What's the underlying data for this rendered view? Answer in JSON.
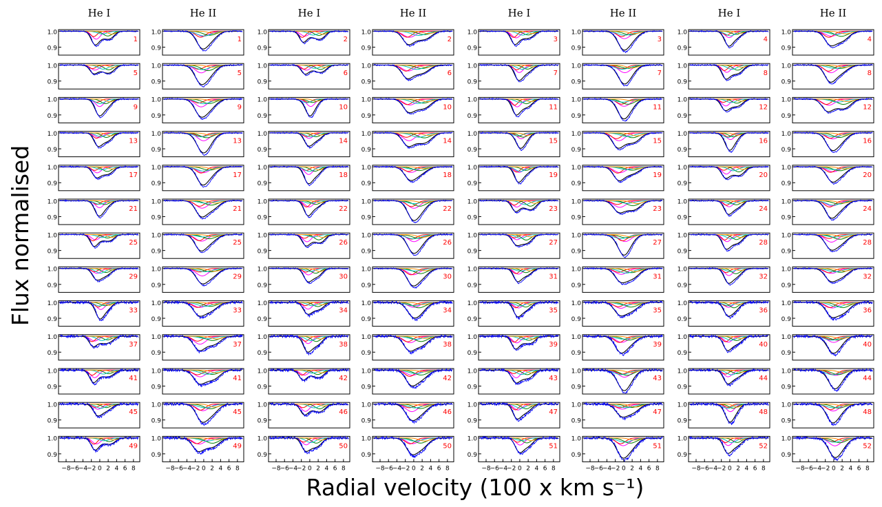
{
  "chart_data": {
    "type": "line",
    "xlabel": "Radial velocity (100 x km s⁻¹)",
    "ylabel": "Flux normalised",
    "column_titles": [
      "He I",
      "He II",
      "He I",
      "He II",
      "He I",
      "He II",
      "He I",
      "He II"
    ],
    "rows": 13,
    "pair_columns": 4,
    "panel_labels": [
      "1",
      "2",
      "3",
      "4",
      "5",
      "6",
      "7",
      "8",
      "9",
      "10",
      "11",
      "12",
      "13",
      "14",
      "15",
      "16",
      "17",
      "18",
      "19",
      "20",
      "21",
      "22",
      "23",
      "24",
      "25",
      "26",
      "27",
      "28",
      "29",
      "30",
      "31",
      "32",
      "33",
      "34",
      "35",
      "36",
      "37",
      "38",
      "39",
      "40",
      "41",
      "42",
      "43",
      "44",
      "45",
      "46",
      "47",
      "48",
      "49",
      "50",
      "51",
      "52"
    ],
    "xlim": [
      -9.8,
      9.5
    ],
    "ylim": [
      0.85,
      1.01
    ],
    "yticks": [
      "0.9",
      "1.0"
    ],
    "xticks": [
      "−8",
      "−6",
      "−4",
      "−2",
      "0",
      "2",
      "4",
      "6",
      "8"
    ],
    "series_colors": {
      "observed": "#0000ff",
      "model_total": "#000000",
      "component_1": "#ff00ff",
      "component_2": "#ff0000",
      "component_3": "#008000",
      "component_4": "#00bfbf",
      "component_5": "#ff8c00"
    },
    "component_shape": "gaussian absorption profiles, depth ~0.02-0.05; total model depth ~0.06-0.12"
  }
}
